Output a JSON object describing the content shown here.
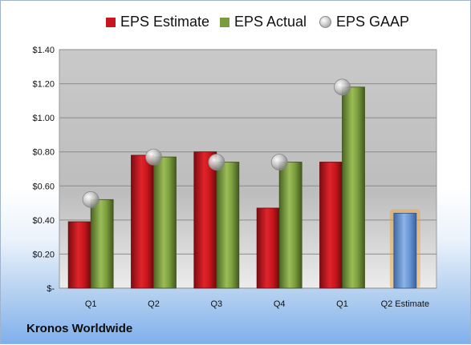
{
  "company": "Kronos Worldwide",
  "chart_data": {
    "type": "bar",
    "categories": [
      "Q1",
      "Q2",
      "Q3",
      "Q4",
      "Q1",
      "Q2 Estimate"
    ],
    "y_ticks": [
      "$-",
      "$0.20",
      "$0.40",
      "$0.60",
      "$0.80",
      "$1.00",
      "$1.20",
      "$1.40"
    ],
    "ylim": [
      0,
      1.4
    ],
    "series": [
      {
        "name": "EPS Estimate",
        "type": "bar",
        "values": [
          0.39,
          0.78,
          0.8,
          0.47,
          0.74,
          null
        ]
      },
      {
        "name": "EPS Actual",
        "type": "bar",
        "values": [
          0.52,
          0.77,
          0.74,
          0.74,
          1.18,
          null
        ]
      },
      {
        "name": "EPS GAAP",
        "type": "scatter",
        "values": [
          0.52,
          0.77,
          0.74,
          0.74,
          1.18,
          null
        ]
      }
    ],
    "estimate_bar": {
      "category": "Q2 Estimate",
      "value": 0.44
    },
    "legend_position": "top",
    "grid": true
  },
  "colors": {
    "estimate": "#c8161d",
    "actual": "#7a9c3c",
    "gaap": "#b5b5b5",
    "estimate_next": "#6a96d4",
    "estimate_next_glow": "#f0a030"
  }
}
